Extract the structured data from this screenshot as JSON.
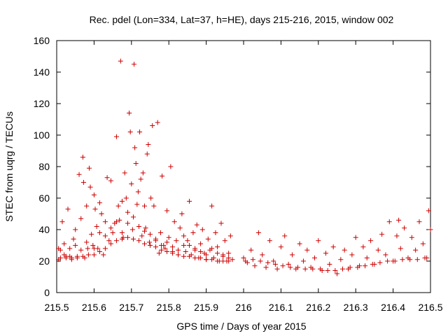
{
  "chart_data": {
    "type": "scatter",
    "title": "Rec. pdel (Lon=334, Lat=37, h=HE), days 215-216, 2015, window 002",
    "xlabel": "GPS time / Days of year 2015",
    "ylabel": "STEC from uqrg / TECUs",
    "xlim": [
      215.5,
      216.5
    ],
    "ylim": [
      0,
      160
    ],
    "xticks": [
      215.5,
      215.6,
      215.7,
      215.8,
      215.9,
      216,
      216.1,
      216.2,
      216.3,
      216.4,
      216.5
    ],
    "xtick_labels": [
      "215.5",
      "215.6",
      "215.7",
      "215.8",
      "215.9",
      "216",
      "216.1",
      "216.2",
      "216.3",
      "216.4",
      "216.5"
    ],
    "yticks": [
      0,
      20,
      40,
      60,
      80,
      100,
      120,
      140,
      160
    ],
    "ytick_labels": [
      "0",
      "20",
      "40",
      "60",
      "80",
      "100",
      "120",
      "140",
      "160"
    ],
    "grid": false,
    "marker": "plus",
    "marker_color": "#cc0000",
    "series": [
      {
        "points": [
          [
            215.505,
            21
          ],
          [
            215.51,
            27
          ],
          [
            215.515,
            45
          ],
          [
            215.52,
            31
          ],
          [
            215.525,
            23
          ],
          [
            215.53,
            53
          ],
          [
            215.535,
            28
          ],
          [
            215.54,
            22
          ],
          [
            215.545,
            34
          ],
          [
            215.55,
            40
          ],
          [
            215.555,
            23
          ],
          [
            215.56,
            75
          ],
          [
            215.565,
            47
          ],
          [
            215.57,
            86
          ],
          [
            215.572,
            70
          ],
          [
            215.575,
            22
          ],
          [
            215.58,
            55
          ],
          [
            215.583,
            28
          ],
          [
            215.587,
            79
          ],
          [
            215.59,
            67
          ],
          [
            215.593,
            37
          ],
          [
            215.597,
            30
          ],
          [
            215.6,
            62
          ],
          [
            215.603,
            53
          ],
          [
            215.607,
            42
          ],
          [
            215.61,
            28
          ],
          [
            215.615,
            57
          ],
          [
            215.62,
            50
          ],
          [
            215.625,
            24
          ],
          [
            215.63,
            45
          ],
          [
            215.635,
            73
          ],
          [
            215.64,
            33
          ],
          [
            215.645,
            71
          ],
          [
            215.65,
            38
          ],
          [
            215.655,
            44
          ],
          [
            215.66,
            99
          ],
          [
            215.665,
            55
          ],
          [
            215.668,
            46
          ],
          [
            215.671,
            147
          ],
          [
            215.675,
            58
          ],
          [
            215.678,
            35
          ],
          [
            215.682,
            76
          ],
          [
            215.686,
            60
          ],
          [
            215.69,
            51
          ],
          [
            215.694,
            114
          ],
          [
            215.697,
            102
          ],
          [
            215.7,
            69
          ],
          [
            215.703,
            40
          ],
          [
            215.707,
            145
          ],
          [
            215.709,
            92
          ],
          [
            215.712,
            82
          ],
          [
            215.715,
            56
          ],
          [
            215.718,
            64
          ],
          [
            215.722,
            102
          ],
          [
            215.725,
            72
          ],
          [
            215.728,
            36
          ],
          [
            215.731,
            76
          ],
          [
            215.735,
            55
          ],
          [
            215.738,
            41
          ],
          [
            215.742,
            88
          ],
          [
            215.745,
            94
          ],
          [
            215.748,
            32
          ],
          [
            215.752,
            60
          ],
          [
            215.756,
            106
          ],
          [
            215.76,
            55
          ],
          [
            215.765,
            34
          ],
          [
            215.77,
            108
          ],
          [
            215.774,
            25
          ],
          [
            215.778,
            38
          ],
          [
            215.782,
            74
          ],
          [
            215.786,
            30
          ],
          [
            215.79,
            28
          ],
          [
            215.795,
            52
          ],
          [
            215.8,
            35
          ],
          [
            215.805,
            80
          ],
          [
            215.81,
            26
          ],
          [
            215.815,
            45
          ],
          [
            215.82,
            33
          ],
          [
            215.825,
            24
          ],
          [
            215.83,
            41
          ],
          [
            215.835,
            50
          ],
          [
            215.84,
            30
          ],
          [
            215.845,
            26
          ],
          [
            215.85,
            33
          ],
          [
            215.855,
            58
          ],
          [
            215.86,
            24
          ],
          [
            215.865,
            38
          ],
          [
            215.87,
            28
          ],
          [
            215.875,
            43
          ],
          [
            215.88,
            22
          ],
          [
            215.885,
            31
          ],
          [
            215.89,
            40
          ],
          [
            215.895,
            25
          ],
          [
            215.9,
            21
          ],
          [
            215.905,
            34
          ],
          [
            215.91,
            27
          ],
          [
            215.915,
            55
          ],
          [
            215.92,
            22
          ],
          [
            215.925,
            38
          ],
          [
            215.93,
            29
          ],
          [
            215.935,
            20
          ],
          [
            215.94,
            44
          ],
          [
            215.945,
            24
          ],
          [
            215.95,
            33
          ],
          [
            215.955,
            20
          ],
          [
            215.96,
            25
          ],
          [
            215.965,
            36
          ],
          [
            215.97,
            21
          ],
          [
            215.505,
            28
          ],
          [
            215.52,
            24
          ],
          [
            215.535,
            23
          ],
          [
            215.55,
            30
          ],
          [
            215.565,
            27
          ],
          [
            215.58,
            32
          ],
          [
            215.6,
            28
          ],
          [
            215.615,
            38
          ],
          [
            215.63,
            36
          ],
          [
            215.645,
            41
          ],
          [
            215.66,
            45
          ],
          [
            215.675,
            38
          ],
          [
            215.69,
            44
          ],
          [
            215.705,
            48
          ],
          [
            215.72,
            42
          ],
          [
            215.735,
            39
          ],
          [
            215.75,
            37
          ],
          [
            215.765,
            33
          ],
          [
            215.78,
            30
          ],
          [
            215.795,
            32
          ],
          [
            215.81,
            29
          ],
          [
            215.825,
            27
          ],
          [
            215.84,
            36
          ],
          [
            215.855,
            30
          ],
          [
            215.87,
            27
          ],
          [
            215.885,
            26
          ],
          [
            215.9,
            24
          ],
          [
            215.915,
            28
          ],
          [
            215.93,
            25
          ],
          [
            215.945,
            23
          ],
          [
            215.96,
            22
          ],
          [
            215.51,
            22
          ],
          [
            215.525,
            22
          ],
          [
            215.54,
            21
          ],
          [
            215.555,
            22
          ],
          [
            215.57,
            23
          ],
          [
            215.585,
            24
          ],
          [
            215.6,
            24
          ],
          [
            215.615,
            26
          ],
          [
            215.63,
            28
          ],
          [
            215.645,
            31
          ],
          [
            215.66,
            33
          ],
          [
            215.675,
            34
          ],
          [
            215.69,
            35
          ],
          [
            215.705,
            34
          ],
          [
            215.72,
            33
          ],
          [
            215.735,
            31
          ],
          [
            215.75,
            30
          ],
          [
            215.765,
            29
          ],
          [
            215.78,
            27
          ],
          [
            215.795,
            26
          ],
          [
            215.81,
            25
          ],
          [
            215.825,
            24
          ],
          [
            215.84,
            23
          ],
          [
            215.855,
            23
          ],
          [
            215.87,
            22
          ],
          [
            215.885,
            22
          ],
          [
            215.9,
            21
          ],
          [
            215.915,
            21
          ],
          [
            215.93,
            20
          ],
          [
            215.945,
            20
          ],
          [
            215.96,
            20
          ],
          [
            216.0,
            22
          ],
          [
            216.01,
            19
          ],
          [
            216.02,
            27
          ],
          [
            216.03,
            17
          ],
          [
            216.04,
            38
          ],
          [
            216.05,
            24
          ],
          [
            216.06,
            16
          ],
          [
            216.07,
            33
          ],
          [
            216.08,
            20
          ],
          [
            216.09,
            15
          ],
          [
            216.1,
            29
          ],
          [
            216.11,
            36
          ],
          [
            216.12,
            18
          ],
          [
            216.13,
            24
          ],
          [
            216.14,
            15
          ],
          [
            216.15,
            31
          ],
          [
            216.16,
            20
          ],
          [
            216.17,
            27
          ],
          [
            216.18,
            16
          ],
          [
            216.19,
            22
          ],
          [
            216.2,
            33
          ],
          [
            216.21,
            14
          ],
          [
            216.22,
            25
          ],
          [
            216.23,
            18
          ],
          [
            216.24,
            29
          ],
          [
            216.25,
            12
          ],
          [
            216.26,
            21
          ],
          [
            216.27,
            27
          ],
          [
            216.28,
            15
          ],
          [
            216.29,
            24
          ],
          [
            216.3,
            35
          ],
          [
            216.31,
            17
          ],
          [
            216.32,
            29
          ],
          [
            216.33,
            22
          ],
          [
            216.34,
            33
          ],
          [
            216.35,
            18
          ],
          [
            216.36,
            27
          ],
          [
            216.37,
            37
          ],
          [
            216.38,
            24
          ],
          [
            216.39,
            45
          ],
          [
            216.4,
            20
          ],
          [
            216.41,
            36
          ],
          [
            216.415,
            46
          ],
          [
            216.42,
            28
          ],
          [
            216.43,
            41
          ],
          [
            216.44,
            22
          ],
          [
            216.45,
            35
          ],
          [
            216.46,
            27
          ],
          [
            216.47,
            45
          ],
          [
            216.48,
            31
          ],
          [
            216.49,
            22
          ],
          [
            216.495,
            52
          ],
          [
            216.5,
            40
          ],
          [
            216.005,
            20
          ],
          [
            216.025,
            21
          ],
          [
            216.045,
            20
          ],
          [
            216.065,
            19
          ],
          [
            216.085,
            18
          ],
          [
            216.105,
            17
          ],
          [
            216.125,
            16
          ],
          [
            216.145,
            16
          ],
          [
            216.165,
            15
          ],
          [
            216.185,
            15
          ],
          [
            216.205,
            15
          ],
          [
            216.225,
            14
          ],
          [
            216.245,
            14
          ],
          [
            216.265,
            15
          ],
          [
            216.285,
            16
          ],
          [
            216.305,
            16
          ],
          [
            216.325,
            17
          ],
          [
            216.345,
            18
          ],
          [
            216.365,
            19
          ],
          [
            216.385,
            20
          ],
          [
            216.405,
            20
          ],
          [
            216.425,
            21
          ],
          [
            216.445,
            21
          ],
          [
            216.465,
            21
          ],
          [
            216.485,
            22
          ]
        ]
      }
    ]
  }
}
